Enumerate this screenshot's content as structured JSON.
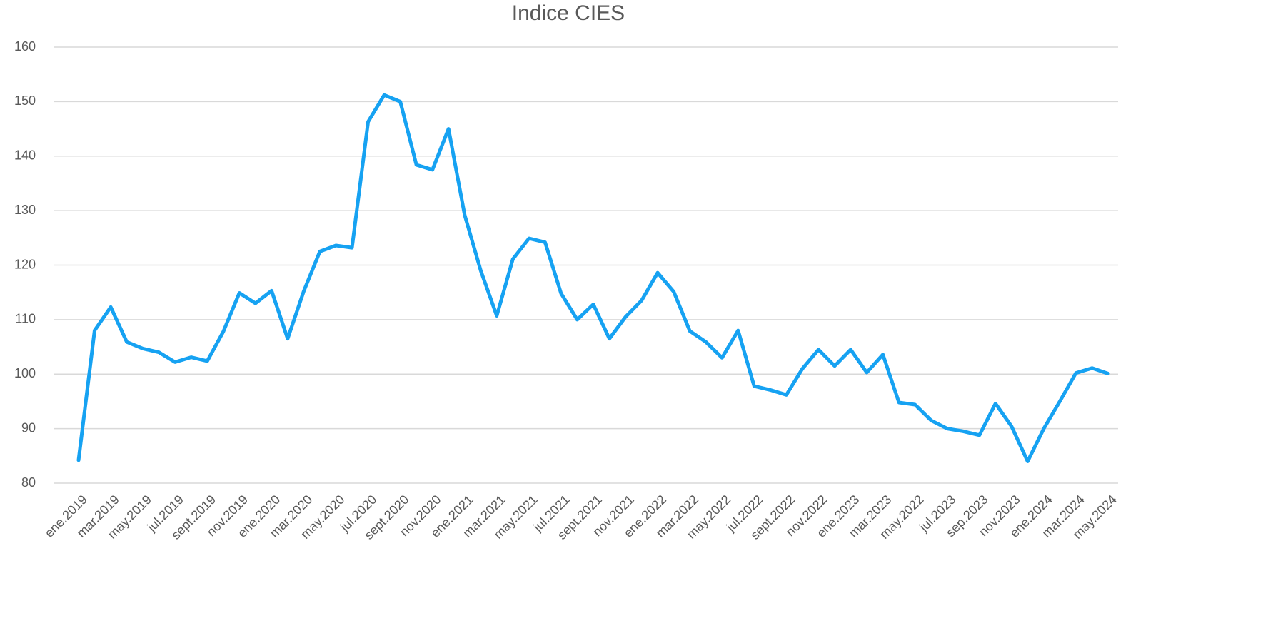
{
  "chart_data": {
    "type": "line",
    "title": "Indice CIES",
    "categories": [
      "ene.2019",
      null,
      "mar.2019",
      null,
      "may.2019",
      null,
      "jul.2019",
      null,
      "sept.2019",
      null,
      "nov.2019",
      null,
      "ene.2020",
      null,
      "mar.2020",
      null,
      "may.2020",
      null,
      "jul.2020",
      null,
      "sept.2020",
      null,
      "nov.2020",
      null,
      "ene.2021",
      null,
      "mar.2021",
      null,
      "may.2021",
      null,
      "jul.2021",
      null,
      "sept.2021",
      null,
      "nov.2021",
      null,
      "ene.2022",
      null,
      "mar.2022",
      null,
      "may.2022",
      null,
      "jul.2022",
      null,
      "sept.2022",
      null,
      "nov.2022",
      null,
      "ene.2023",
      null,
      "mar.2023",
      null,
      "may.2022",
      null,
      "jul.2023",
      null,
      "sep.2023",
      null,
      "nov.2023",
      null,
      "ene.2024",
      null,
      "mar.2024",
      null,
      "may.2024"
    ],
    "series": [
      {
        "name": "Indice CIES",
        "color": "#16a2f2",
        "values": [
          84.2,
          108,
          112.3,
          105.9,
          104.7,
          104.0,
          102.2,
          103.1,
          102.4,
          107.8,
          114.9,
          113.0,
          115.3,
          106.5,
          115.2,
          122.5,
          123.6,
          123.2,
          146.3,
          151.2,
          150.0,
          138.4,
          137.5,
          145.0,
          129.2,
          119.0,
          110.7,
          121.1,
          124.9,
          124.2,
          114.8,
          110.0,
          112.8,
          106.5,
          110.5,
          113.5,
          118.6,
          115.1,
          107.9,
          105.9,
          103.0,
          108.0,
          97.8,
          97.1,
          96.2,
          101.0,
          104.5,
          101.5,
          104.5,
          100.3,
          103.6,
          94.8,
          94.4,
          91.5,
          90.0,
          89.5,
          88.8,
          94.6,
          90.4,
          84.0,
          90.0,
          95.0,
          100.2,
          101.1,
          100.1
        ]
      }
    ],
    "ylim": [
      80,
      160
    ],
    "yticks": [
      80,
      90,
      100,
      110,
      120,
      130,
      140,
      150,
      160
    ],
    "grid": true
  }
}
